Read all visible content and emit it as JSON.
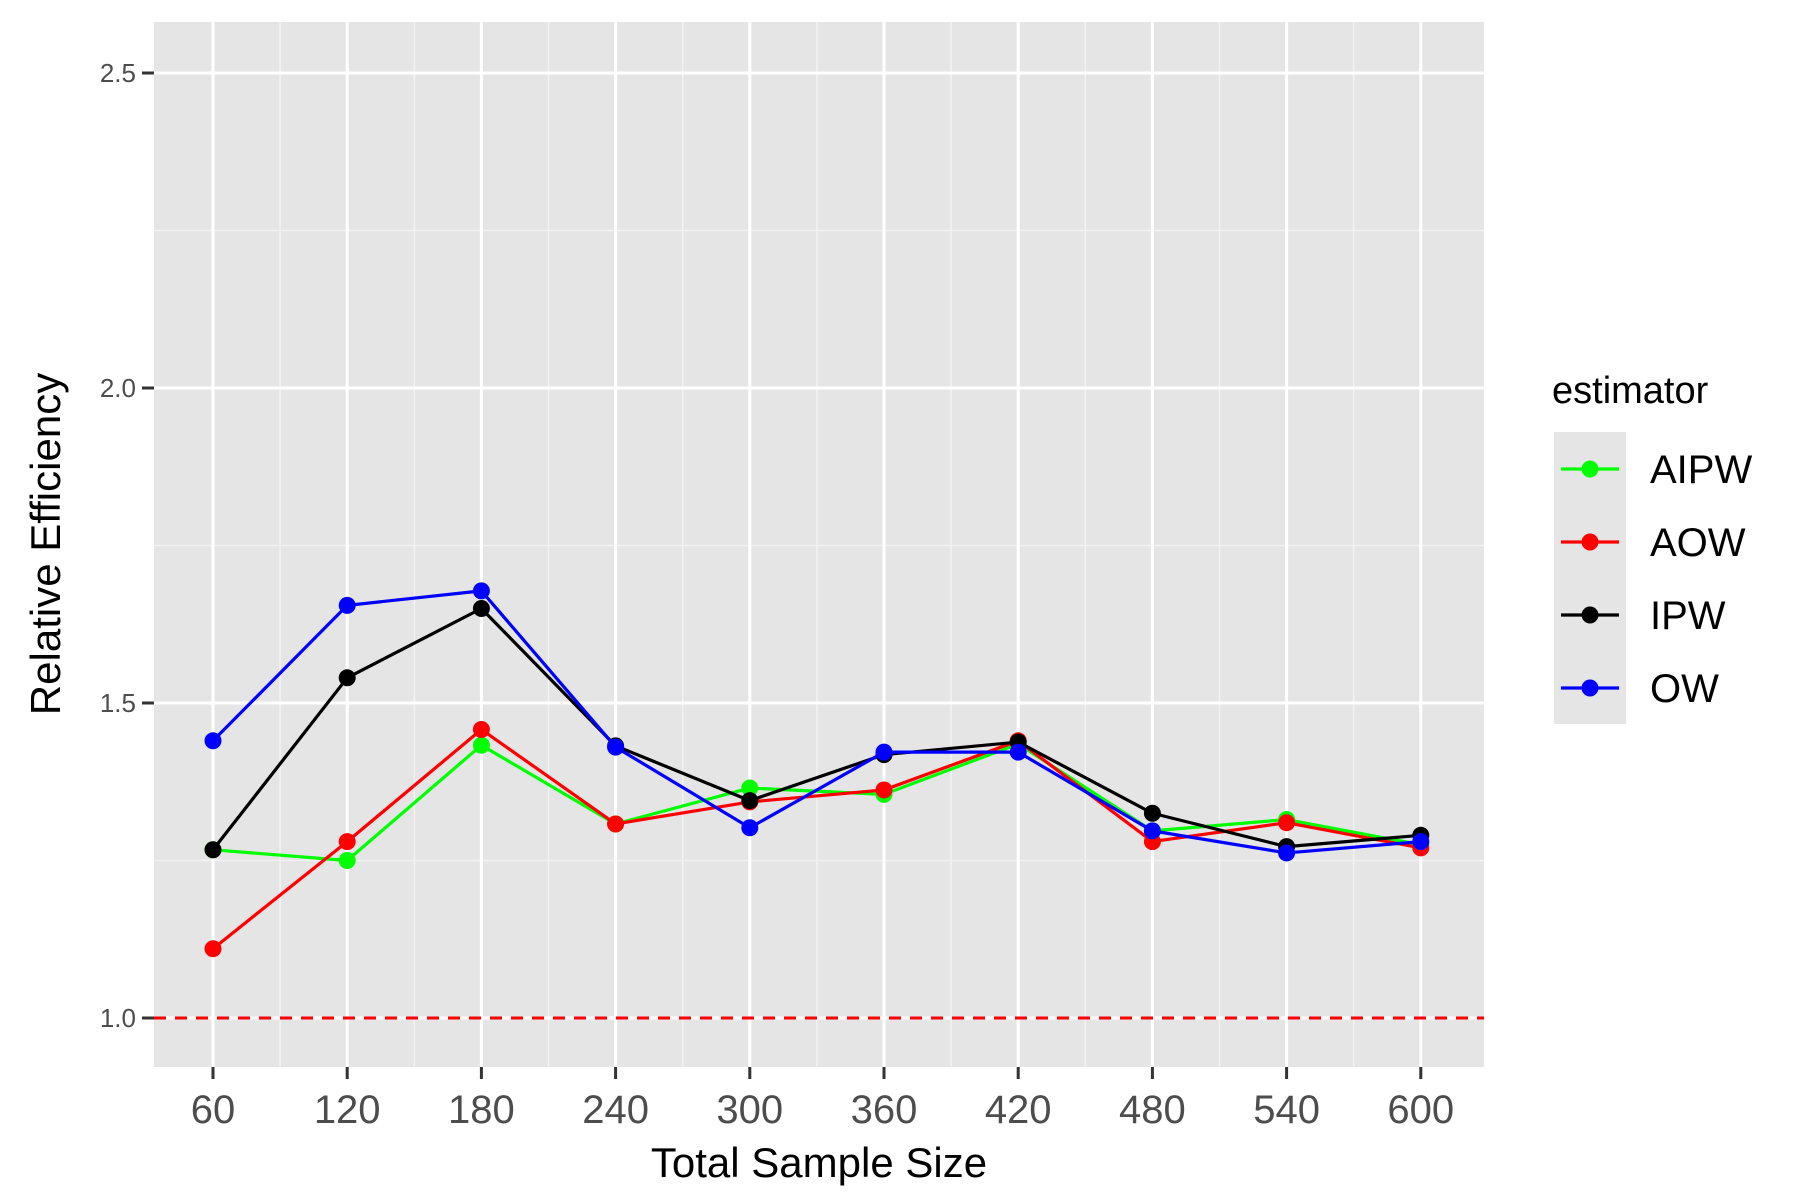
{
  "chart_data": {
    "type": "line",
    "title": "",
    "xlabel": "Total Sample Size",
    "ylabel": "Relative Efficiency",
    "x": [
      60,
      120,
      180,
      240,
      300,
      360,
      420,
      480,
      540,
      600
    ],
    "x_tick_labels": [
      "60",
      "120",
      "180",
      "240",
      "300",
      "360",
      "420",
      "480",
      "540",
      "600"
    ],
    "y_ticks": [
      1.0,
      1.5,
      2.0,
      2.5
    ],
    "y_tick_labels": [
      "1.0",
      "1.5",
      "2.0",
      "2.5"
    ],
    "ylim": [
      0.925,
      2.6
    ],
    "grid": true,
    "reference_line": {
      "y": 1.0,
      "color": "#ff0000",
      "style": "dashed"
    },
    "legend": {
      "title": "estimator",
      "position": "right"
    },
    "series": [
      {
        "name": "AIPW",
        "color": "#00ff00",
        "values": [
          1.267,
          1.25,
          1.433,
          1.308,
          1.365,
          1.355,
          1.435,
          1.297,
          1.315,
          1.275
        ]
      },
      {
        "name": "AOW",
        "color": "#ff0000",
        "values": [
          1.11,
          1.28,
          1.458,
          1.308,
          1.343,
          1.362,
          1.44,
          1.28,
          1.31,
          1.27
        ]
      },
      {
        "name": "IPW",
        "color": "#000000",
        "values": [
          1.267,
          1.54,
          1.65,
          1.432,
          1.345,
          1.418,
          1.438,
          1.325,
          1.272,
          1.29
        ]
      },
      {
        "name": "OW",
        "color": "#0000ff",
        "values": [
          1.44,
          1.655,
          1.678,
          1.43,
          1.302,
          1.422,
          1.422,
          1.297,
          1.262,
          1.28
        ]
      }
    ]
  }
}
